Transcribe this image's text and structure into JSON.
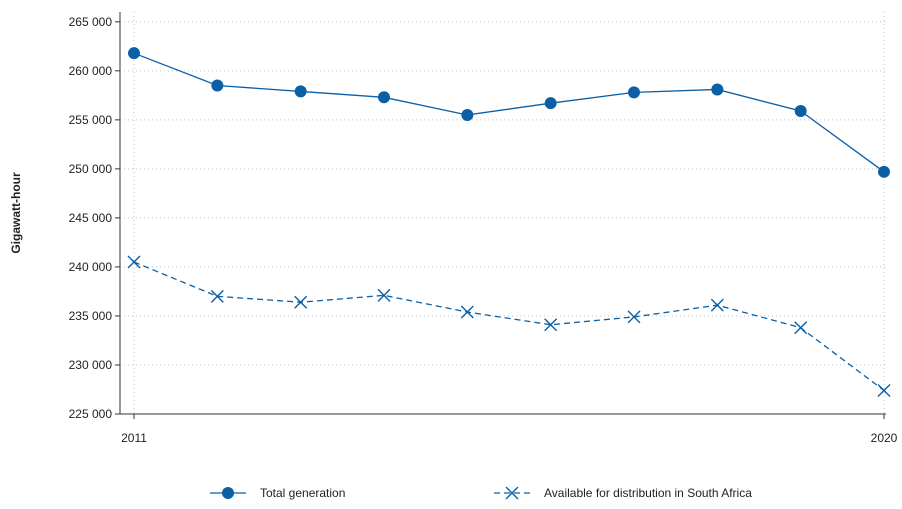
{
  "chart_data": {
    "type": "line",
    "title": "",
    "xlabel": "",
    "ylabel": "Gigawatt-hour",
    "x": [
      2011,
      2012,
      2013,
      2014,
      2015,
      2016,
      2017,
      2018,
      2019,
      2020
    ],
    "x_tick_labels": [
      "2011",
      "2020"
    ],
    "xlim": [
      2011,
      2020
    ],
    "ylim": [
      225000,
      266000
    ],
    "y_ticks": [
      225000,
      230000,
      235000,
      240000,
      245000,
      250000,
      255000,
      260000,
      265000
    ],
    "y_tick_labels": [
      "225 000",
      "230 000",
      "235 000",
      "240 000",
      "245 000",
      "250 000",
      "255 000",
      "260 000",
      "265 000"
    ],
    "grid": "dotted",
    "legend_position": "bottom",
    "series": [
      {
        "name": "Total generation",
        "style": "solid-line-circle-markers",
        "color": "#0b5fa5",
        "values": [
          261800,
          258500,
          257900,
          257300,
          255500,
          256700,
          257800,
          258100,
          255900,
          249700
        ]
      },
      {
        "name": "Available for distribution in South Africa",
        "style": "dashed-line-x-markers",
        "color": "#0b5fa5",
        "values": [
          240500,
          237000,
          236400,
          237100,
          235400,
          234100,
          234900,
          236100,
          233800,
          227400
        ]
      }
    ]
  }
}
